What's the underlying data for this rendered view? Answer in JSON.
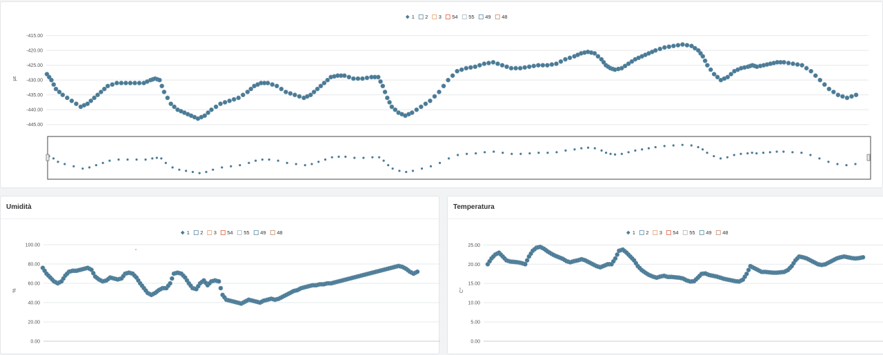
{
  "colors": {
    "series": "#4a7a95",
    "series_edge": "#6b93aa",
    "legend_boxes": [
      "#4a7a95",
      "#5a8aa5",
      "#e0a070",
      "#e05a3a",
      "#aab4bb",
      "#5a8aa5",
      "#c08a6a"
    ]
  },
  "panels": {
    "humidity_title": "Umidità",
    "temperature_title": "Temperatura"
  },
  "chart_data": [
    {
      "id": "strain",
      "type": "scatter",
      "title": "",
      "ylabel": "µε",
      "ylim": [
        -446,
        -413
      ],
      "yticks": [
        "-415.00",
        "-420.00",
        "-425.00",
        "-430.00",
        "-435.00",
        "-440.00",
        "-445.00"
      ],
      "ytick_values": [
        -415,
        -420,
        -425,
        -430,
        -435,
        -440,
        -445
      ],
      "legend": [
        "1",
        "2",
        "3",
        "54",
        "55",
        "49",
        "48"
      ],
      "series": [
        {
          "name": "1",
          "x": [
            0,
            2,
            4,
            7,
            11,
            15,
            18,
            21,
            24,
            27,
            31,
            35,
            39,
            43,
            46,
            48,
            50,
            52,
            55,
            58,
            61,
            64,
            67,
            70,
            73,
            77,
            81,
            85,
            89,
            92,
            95,
            98,
            102,
            106,
            110,
            114,
            117,
            120,
            123,
            126,
            129,
            132,
            136,
            140,
            144,
            147,
            149,
            151,
            153,
            156,
            159,
            162,
            166,
            170,
            174,
            178,
            182,
            186,
            190,
            194,
            198,
            202,
            206,
            210,
            214,
            218,
            222,
            226,
            230,
            234,
            237,
            240,
            243,
            246,
            248,
            250,
            252,
            255,
            258,
            261,
            264,
            267,
            270,
            274,
            278,
            282,
            286,
            289,
            291,
            293,
            296,
            299,
            302,
            305,
            308,
            311,
            313,
            315,
            318,
            321,
            324,
            327,
            331,
            335,
            339,
            343,
            347,
            351,
            355,
            359
          ],
          "y": [
            -428,
            -430,
            -433,
            -435,
            -437,
            -439,
            -438,
            -436,
            -434,
            -432,
            -431,
            -431,
            -431,
            -431,
            -430,
            -429.5,
            -430,
            -434,
            -438,
            -440,
            -441,
            -442,
            -443,
            -442,
            -440,
            -438,
            -437,
            -436,
            -434,
            -432,
            -431,
            -431,
            -432,
            -434,
            -435,
            -436,
            -435,
            -433,
            -431,
            -429,
            -428.5,
            -428.5,
            -429.5,
            -429.5,
            -429,
            -429,
            -432,
            -436,
            -439,
            -441,
            -442,
            -441,
            -439,
            -437,
            -434,
            -430,
            -427,
            -426,
            -425.5,
            -424.5,
            -424,
            -425,
            -426,
            -426,
            -425.5,
            -425,
            -425,
            -424.5,
            -423,
            -422,
            -421,
            -420.5,
            -421,
            -423,
            -425,
            -426,
            -426.5,
            -426,
            -424.5,
            -423,
            -422,
            -421,
            -420,
            -419,
            -418.5,
            -418,
            -418.5,
            -420,
            -422,
            -425,
            -428,
            -430,
            -429,
            -427,
            -426,
            -425.5,
            -425,
            -425.5,
            -425,
            -424.5,
            -424,
            -424,
            -424.5,
            -425,
            -427,
            -430,
            -433,
            -435,
            -436,
            -435
          ]
        }
      ]
    },
    {
      "id": "humidity",
      "type": "scatter",
      "title": "Umidità",
      "ylabel": "%",
      "ylim": [
        0,
        105
      ],
      "yticks": [
        "100.00",
        "80.00",
        "60.00",
        "40.00",
        "20.00",
        "0.00"
      ],
      "ytick_values": [
        100,
        80,
        60,
        40,
        20,
        0
      ],
      "legend": [
        "1",
        "2",
        "3",
        "54",
        "55",
        "49",
        "48"
      ],
      "series": [
        {
          "name": "1",
          "x": [
            0,
            3,
            6,
            9,
            12,
            15,
            18,
            21,
            24,
            27,
            30,
            33,
            36,
            39,
            42,
            45,
            48,
            51,
            54,
            57,
            60,
            63,
            66,
            69,
            72,
            75,
            78,
            81,
            84,
            87,
            90,
            93,
            96,
            99,
            102,
            105,
            108,
            111,
            114,
            117,
            120,
            123,
            126,
            129,
            132,
            135,
            138,
            141,
            144,
            147,
            150,
            153,
            156,
            159,
            162,
            165,
            168,
            171,
            174,
            177,
            180,
            183,
            186,
            189,
            192,
            195,
            198,
            201,
            204,
            207,
            210,
            213,
            216,
            219,
            222,
            225,
            228,
            231,
            234,
            237,
            240,
            243,
            246,
            249,
            252,
            255,
            258,
            261,
            264,
            267,
            270,
            273,
            276,
            279,
            282,
            285,
            288,
            291,
            294,
            297,
            300
          ],
          "y": [
            76,
            70,
            66,
            62,
            60,
            62,
            68,
            72,
            73,
            73,
            74,
            75,
            76,
            74,
            67,
            64,
            62,
            63,
            66,
            65,
            64,
            65,
            70,
            71,
            70,
            66,
            60,
            55,
            50,
            48,
            50,
            53,
            55,
            55,
            60,
            70,
            71,
            70,
            66,
            60,
            55,
            54,
            60,
            63,
            58,
            62,
            63,
            62,
            48,
            43,
            42,
            41,
            40,
            39,
            41,
            43,
            42,
            41,
            40,
            42,
            43,
            44,
            43,
            44,
            46,
            48,
            50,
            52,
            53,
            55,
            56,
            57,
            58,
            58,
            59,
            59,
            60,
            60,
            61,
            62,
            63,
            64,
            65,
            66,
            67,
            68,
            69,
            70,
            71,
            72,
            73,
            74,
            75,
            76,
            77,
            78,
            77,
            75,
            72,
            70,
            72
          ]
        }
      ]
    },
    {
      "id": "temperature",
      "type": "scatter",
      "title": "Temperatura",
      "ylabel": "C°",
      "ylim": [
        0,
        26.5
      ],
      "yticks": [
        "25.00",
        "20.00",
        "15.00",
        "10.00",
        "5.00",
        "0.00"
      ],
      "ytick_values": [
        25,
        20,
        15,
        10,
        5,
        0
      ],
      "legend": [
        "1",
        "2",
        "3",
        "54",
        "55",
        "49",
        "48"
      ],
      "series": [
        {
          "name": "1",
          "x": [
            0,
            3,
            6,
            9,
            12,
            15,
            18,
            21,
            24,
            27,
            30,
            33,
            36,
            39,
            42,
            45,
            48,
            51,
            54,
            57,
            60,
            63,
            66,
            69,
            72,
            75,
            78,
            81,
            84,
            87,
            90,
            93,
            96,
            99,
            102,
            105,
            108,
            111,
            114,
            117,
            120,
            123,
            126,
            129,
            132,
            135,
            138,
            141,
            144,
            147,
            150,
            153,
            156,
            159,
            162,
            165,
            168,
            171,
            174,
            177,
            180,
            183,
            186,
            189,
            192,
            195,
            198,
            201,
            204,
            207,
            210,
            213,
            216,
            219,
            222,
            225,
            228,
            231,
            234,
            237,
            240,
            243,
            246,
            249,
            252,
            255,
            258,
            261,
            264,
            267,
            270,
            273,
            276,
            279,
            282,
            285,
            288,
            291,
            294,
            297,
            300
          ],
          "y": [
            20.0,
            21.5,
            22.5,
            23.0,
            22.0,
            21.0,
            20.7,
            20.6,
            20.5,
            20.3,
            20.0,
            22.0,
            23.5,
            24.3,
            24.5,
            24.0,
            23.3,
            22.7,
            22.2,
            21.8,
            21.4,
            20.8,
            20.5,
            20.8,
            21.0,
            21.3,
            21.0,
            20.5,
            20.0,
            19.5,
            19.2,
            19.6,
            20.0,
            20.0,
            21.5,
            23.5,
            23.8,
            23.0,
            22.0,
            21.0,
            19.5,
            18.5,
            17.8,
            17.2,
            16.8,
            16.5,
            16.8,
            17.0,
            16.7,
            16.7,
            16.6,
            16.5,
            16.3,
            15.8,
            15.5,
            15.6,
            16.5,
            17.5,
            17.6,
            17.2,
            17.0,
            16.8,
            16.5,
            16.2,
            16.0,
            15.8,
            15.6,
            15.5,
            16.0,
            17.5,
            19.5,
            19.0,
            18.5,
            18.0,
            18.0,
            17.9,
            17.8,
            17.8,
            17.9,
            18.0,
            18.5,
            19.5,
            21.0,
            22.0,
            21.8,
            21.5,
            21.0,
            20.5,
            20.0,
            19.8,
            20.0,
            20.5,
            21.0,
            21.5,
            21.8,
            22.0,
            21.8,
            21.6,
            21.5,
            21.6,
            21.8
          ]
        }
      ]
    }
  ]
}
